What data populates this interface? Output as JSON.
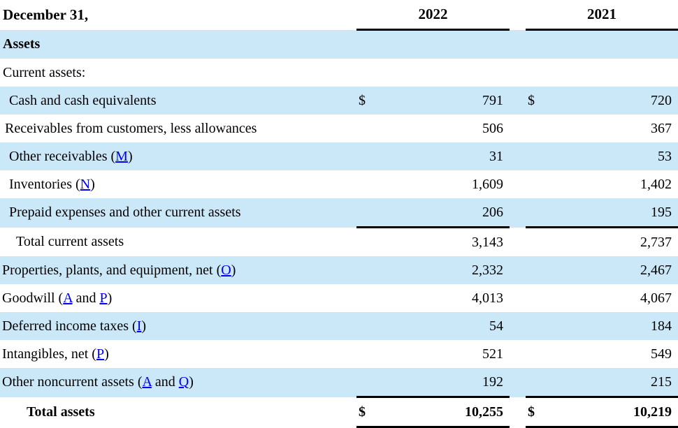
{
  "document": {
    "title": "Balance sheet assets table",
    "colors": {
      "row_highlight": "#cbe8f8",
      "link": "#0000ee",
      "rule": "#000000",
      "text": "#000000"
    },
    "header": {
      "date_label": "December 31,",
      "year1": "2022",
      "year2": "2021"
    },
    "rows": [
      {
        "label": [
          {
            "t": "Assets"
          }
        ],
        "shaded": true,
        "bold": true,
        "indent": 4,
        "dollar1": "",
        "value1": "",
        "dollar2": "",
        "value2": "",
        "rule_below": false,
        "final": false
      },
      {
        "label": [
          {
            "t": "Current assets:"
          }
        ],
        "shaded": false,
        "bold": false,
        "indent": 4,
        "dollar1": "",
        "value1": "",
        "dollar2": "",
        "value2": "",
        "rule_below": false,
        "final": false
      },
      {
        "label": [
          {
            "t": "Cash and cash equivalents"
          }
        ],
        "shaded": true,
        "bold": false,
        "indent": 13,
        "dollar1": "$",
        "value1": "791",
        "dollar2": "$",
        "value2": "720",
        "rule_below": false,
        "final": false
      },
      {
        "label": [
          {
            "t": "Receivables from customers, less allowances"
          }
        ],
        "shaded": false,
        "bold": false,
        "indent": 7,
        "dollar1": "",
        "value1": "506",
        "dollar2": "",
        "value2": "367",
        "rule_below": false,
        "final": false
      },
      {
        "label": [
          {
            "t": "Other receivables ("
          },
          {
            "t": "M",
            "link": true
          },
          {
            "t": ")"
          }
        ],
        "shaded": true,
        "bold": false,
        "indent": 13,
        "dollar1": "",
        "value1": "31",
        "dollar2": "",
        "value2": "53",
        "rule_below": false,
        "final": false
      },
      {
        "label": [
          {
            "t": "Inventories ("
          },
          {
            "t": "N",
            "link": true
          },
          {
            "t": ")"
          }
        ],
        "shaded": false,
        "bold": false,
        "indent": 13,
        "dollar1": "",
        "value1": "1,609",
        "dollar2": "",
        "value2": "1,402",
        "rule_below": false,
        "final": false
      },
      {
        "label": [
          {
            "t": "Prepaid expenses and other current assets"
          }
        ],
        "shaded": true,
        "bold": false,
        "indent": 13,
        "dollar1": "",
        "value1": "206",
        "dollar2": "",
        "value2": "195",
        "rule_below": true,
        "final": false
      },
      {
        "label": [
          {
            "t": "Total current assets"
          }
        ],
        "shaded": false,
        "bold": false,
        "indent": 23,
        "dollar1": "",
        "value1": "3,143",
        "dollar2": "",
        "value2": "2,737",
        "rule_below": false,
        "final": false
      },
      {
        "label": [
          {
            "t": "Properties, plants, and equipment, net ("
          },
          {
            "t": "O",
            "link": true
          },
          {
            "t": ")"
          }
        ],
        "shaded": true,
        "bold": false,
        "indent": 3,
        "dollar1": "",
        "value1": "2,332",
        "dollar2": "",
        "value2": "2,467",
        "rule_below": false,
        "final": false
      },
      {
        "label": [
          {
            "t": "Goodwill ("
          },
          {
            "t": "A",
            "link": true
          },
          {
            "t": " and "
          },
          {
            "t": "P",
            "link": true
          },
          {
            "t": ")"
          }
        ],
        "shaded": false,
        "bold": false,
        "indent": 3,
        "dollar1": "",
        "value1": "4,013",
        "dollar2": "",
        "value2": "4,067",
        "rule_below": false,
        "final": false
      },
      {
        "label": [
          {
            "t": "Deferred income taxes ("
          },
          {
            "t": "I",
            "link": true
          },
          {
            "t": ")"
          }
        ],
        "shaded": true,
        "bold": false,
        "indent": 3,
        "dollar1": "",
        "value1": "54",
        "dollar2": "",
        "value2": "184",
        "rule_below": false,
        "final": false
      },
      {
        "label": [
          {
            "t": "Intangibles, net ("
          },
          {
            "t": "P",
            "link": true
          },
          {
            "t": ")"
          }
        ],
        "shaded": false,
        "bold": false,
        "indent": 3,
        "dollar1": "",
        "value1": "521",
        "dollar2": "",
        "value2": "549",
        "rule_below": false,
        "final": false
      },
      {
        "label": [
          {
            "t": "Other noncurrent assets ("
          },
          {
            "t": "A",
            "link": true
          },
          {
            "t": " and "
          },
          {
            "t": "Q",
            "link": true
          },
          {
            "t": ")"
          }
        ],
        "shaded": true,
        "bold": false,
        "indent": 3,
        "dollar1": "",
        "value1": "192",
        "dollar2": "",
        "value2": "215",
        "rule_below": true,
        "final": false
      },
      {
        "label": [
          {
            "t": "Total assets"
          }
        ],
        "shaded": false,
        "bold": true,
        "indent": 38,
        "dollar1": "$",
        "value1": "10,255",
        "dollar2": "$",
        "value2": "10,219",
        "rule_below": false,
        "final": true
      }
    ]
  }
}
